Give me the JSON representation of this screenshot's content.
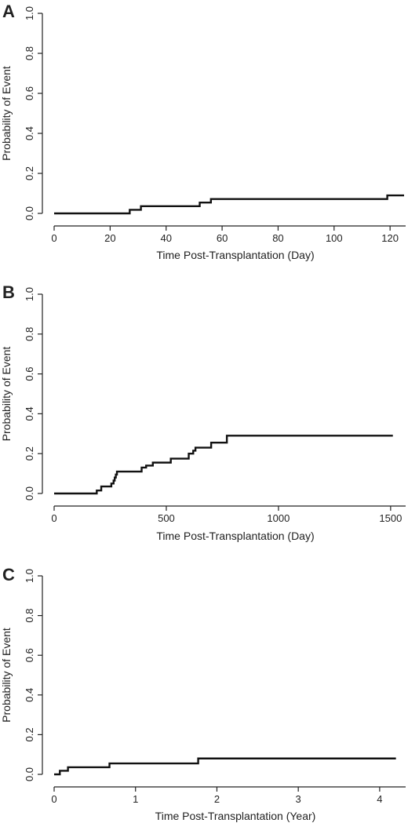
{
  "chart_data": [
    {
      "panel": "A",
      "type": "line",
      "step": true,
      "xlabel": "Time Post-Transplantation (Day)",
      "ylabel": "Probability of Event",
      "xlim": [
        0,
        125
      ],
      "ylim": [
        0,
        1
      ],
      "xticks": [
        0,
        20,
        40,
        60,
        80,
        100,
        120
      ],
      "yticks": [
        0.0,
        0.2,
        0.4,
        0.6,
        0.8,
        1.0
      ],
      "ytick_labels": [
        "0.0",
        "0.2",
        "0.4",
        "0.6",
        "0.8",
        "1.0"
      ],
      "grid": false,
      "series": [
        {
          "x": [
            0,
            27,
            31,
            52,
            56,
            119,
            125
          ],
          "y": [
            0.0,
            0.018,
            0.036,
            0.054,
            0.072,
            0.09,
            0.09
          ]
        }
      ]
    },
    {
      "panel": "B",
      "type": "line",
      "step": true,
      "xlabel": "Time Post-Transplantation (Day)",
      "ylabel": "Probability of Event",
      "xlim": [
        0,
        1560
      ],
      "ylim": [
        0,
        1
      ],
      "xticks": [
        0,
        500,
        1000,
        1500
      ],
      "yticks": [
        0.0,
        0.2,
        0.4,
        0.6,
        0.8,
        1.0
      ],
      "ytick_labels": [
        "0.0",
        "0.2",
        "0.4",
        "0.6",
        "0.8",
        "1.0"
      ],
      "grid": false,
      "series": [
        {
          "x": [
            0,
            190,
            210,
            255,
            265,
            270,
            275,
            280,
            390,
            410,
            440,
            520,
            600,
            620,
            630,
            700,
            770,
            1510
          ],
          "y": [
            0.0,
            0.015,
            0.035,
            0.05,
            0.065,
            0.08,
            0.095,
            0.11,
            0.13,
            0.14,
            0.155,
            0.175,
            0.2,
            0.215,
            0.23,
            0.255,
            0.29,
            0.29
          ]
        }
      ]
    },
    {
      "panel": "C",
      "type": "line",
      "step": true,
      "xlabel": "Time Post-Transplantation (Year)",
      "ylabel": "Probability of Event",
      "xlim": [
        0,
        4.3
      ],
      "ylim": [
        0,
        1
      ],
      "xticks": [
        0,
        1,
        2,
        3,
        4
      ],
      "yticks": [
        0.0,
        0.2,
        0.4,
        0.6,
        0.8,
        1.0
      ],
      "ytick_labels": [
        "0.0",
        "0.2",
        "0.4",
        "0.6",
        "0.8",
        "1.0"
      ],
      "grid": false,
      "series": [
        {
          "x": [
            0,
            0.07,
            0.17,
            0.68,
            1.77,
            4.2
          ],
          "y": [
            0.0,
            0.018,
            0.036,
            0.055,
            0.08,
            0.08
          ]
        }
      ]
    }
  ]
}
